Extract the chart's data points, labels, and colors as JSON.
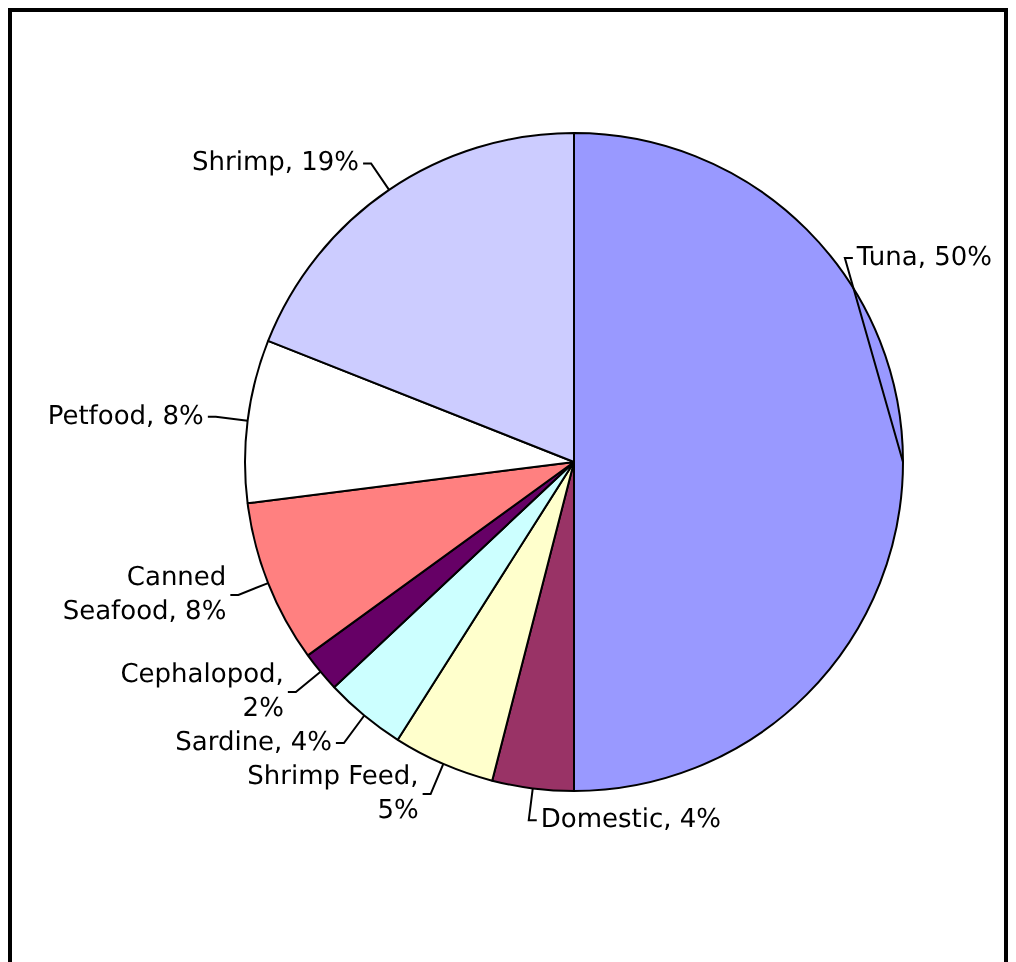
{
  "chart_data": {
    "type": "pie",
    "categories": [
      "Tuna, 50%",
      "Domestic, 4%",
      "Shrimp Feed, 5%",
      "Sardine, 4%",
      "Cephalopod, 2%",
      "Canned Seafood, 8%",
      "Petfood, 8%",
      "Shrimp, 19%"
    ],
    "values": [
      50,
      4,
      5,
      4,
      2,
      8,
      8,
      19
    ],
    "colors": [
      "#9999ff",
      "#993366",
      "#ffffcc",
      "#ccffff",
      "#660066",
      "#ff8080",
      "#ffffff",
      "#ccccff"
    ],
    "legend": false
  }
}
